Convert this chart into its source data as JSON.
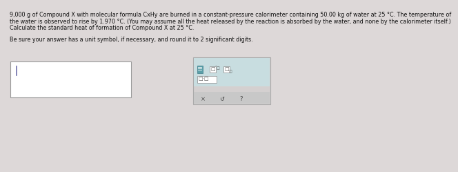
{
  "bg_color": "#ddd8d8",
  "text_color": "#111111",
  "text_color2": "#444444",
  "input_box_color": "#ffffff",
  "input_box_border": "#999999",
  "toolbar_bg": "#d4d0d0",
  "toolbar_border": "#aaaaaa",
  "toolbar_top_bg": "#c8dde0",
  "toolbar_btn_bg": "#c8c8c8",
  "icon_red_color": "#5b9aa8",
  "line1a": "9,000 g of Compound ",
  "line1_X": "X",
  "line1b": " with molecular formula C",
  "line1_sub1": "x",
  "line1_H": "H",
  "line1_sub2": "y",
  "line1c": " are burned in a constant-pressure calorimeter containing 50.00 kg of water at 25 °C. The temperature of",
  "line2": "the water is observed to rise by 1.970 °C. (You may assume all the heat released by the reaction is absorbed by the water, and none by the calorimeter itself.)",
  "line3a": "Calculate the standard heat of formation of Compound ",
  "line3_X": "X",
  "line3b": " at 25 °C.",
  "line4": "Be sure your answer has a unit symbol, if necessary, and round it to 2 significant digits.",
  "fs": 5.8,
  "fs_small": 4.2
}
